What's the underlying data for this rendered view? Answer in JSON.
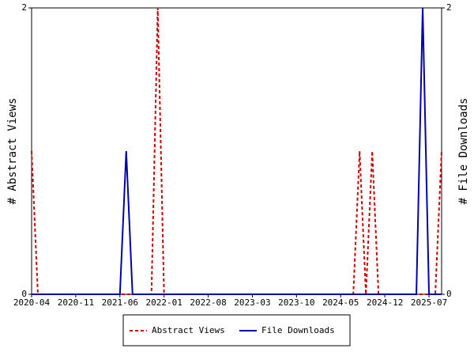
{
  "chart_data": {
    "type": "line",
    "y_label": "# Abstract Views",
    "y2_label": "# File Downloads",
    "categories": [
      "2020-04",
      null,
      null,
      null,
      null,
      null,
      null,
      "2020-11",
      null,
      null,
      null,
      null,
      null,
      null,
      "2021-06",
      null,
      null,
      null,
      null,
      null,
      null,
      "2022-01",
      null,
      null,
      null,
      null,
      null,
      null,
      "2022-08",
      null,
      null,
      null,
      null,
      null,
      null,
      "2023-03",
      null,
      null,
      null,
      null,
      null,
      null,
      "2023-10",
      null,
      null,
      null,
      null,
      null,
      null,
      "2024-05",
      null,
      null,
      null,
      null,
      null,
      null,
      "2024-12",
      null,
      null,
      null,
      null,
      null,
      null,
      "2025-07",
      null,
      null
    ],
    "series": [
      {
        "name": "Abstract Views",
        "color": "#cc0000",
        "dashed": true,
        "values": [
          1,
          0,
          0,
          0,
          0,
          0,
          0,
          0,
          0,
          0,
          0,
          0,
          0,
          0,
          0,
          0,
          0,
          0,
          0,
          0,
          2,
          0,
          0,
          0,
          0,
          0,
          0,
          0,
          0,
          0,
          0,
          0,
          0,
          0,
          0,
          0,
          0,
          0,
          0,
          0,
          0,
          0,
          0,
          0,
          0,
          0,
          0,
          0,
          0,
          0,
          0,
          0,
          1,
          0,
          1,
          0,
          0,
          0,
          0,
          0,
          0,
          0,
          0,
          0,
          0,
          1
        ]
      },
      {
        "name": "File Downloads",
        "color": "#0000aa",
        "axis": "y2",
        "values": [
          0,
          0,
          0,
          0,
          0,
          0,
          0,
          0,
          0,
          0,
          0,
          0,
          0,
          0,
          0,
          1,
          0,
          0,
          0,
          0,
          0,
          0,
          0,
          0,
          0,
          0,
          0,
          0,
          0,
          0,
          0,
          0,
          0,
          0,
          0,
          0,
          0,
          0,
          0,
          0,
          0,
          0,
          0,
          0,
          0,
          0,
          0,
          0,
          0,
          0,
          0,
          0,
          0,
          0,
          0,
          0,
          0,
          0,
          0,
          0,
          0,
          0,
          2,
          0,
          0,
          0
        ]
      }
    ],
    "ylim": [
      0,
      2
    ],
    "yticks": [
      0,
      2
    ],
    "y2lim": [
      0,
      2
    ],
    "y2ticks": [
      0,
      2
    ]
  }
}
